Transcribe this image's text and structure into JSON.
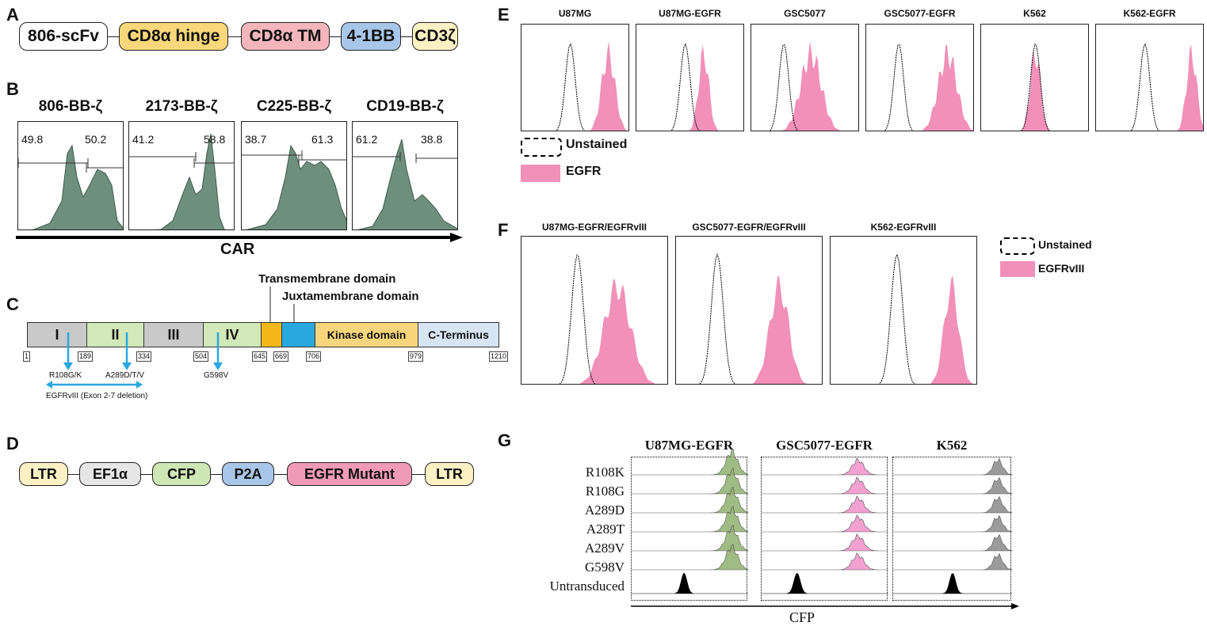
{
  "panel_labels": {
    "a": "A",
    "b": "B",
    "c": "C",
    "d": "D",
    "e": "E",
    "f": "F",
    "g": "G"
  },
  "a": {
    "boxes": [
      "806-scFv",
      "CD8α hinge",
      "CD8α TM",
      "4-1BB",
      "CD3ζ"
    ],
    "colors": [
      "#ffffff",
      "#fad77a",
      "#f4b6bc",
      "#a8c6e8",
      "#fdf1c4"
    ]
  },
  "b": {
    "titles": [
      "806-BB-ζ",
      "2173-BB-ζ",
      "C225-BB-ζ",
      "CD19-BB-ζ"
    ],
    "pct_left": [
      "49.8",
      "41.2",
      "38.7",
      "61.2"
    ],
    "pct_right": [
      "50.2",
      "58.8",
      "61.3",
      "38.8"
    ],
    "axis_label": "CAR",
    "fill_color": "#6f8f7e"
  },
  "c": {
    "title_tm": "Transmembrane domain",
    "title_jm": "Juxtamembrane domain",
    "segments": [
      "I",
      "II",
      "III",
      "IV",
      "",
      "",
      "Kinase domain",
      "C-Terminus"
    ],
    "ticks": [
      "1",
      "189",
      "334",
      "504",
      "645",
      "669",
      "706",
      "979",
      "1210"
    ],
    "mut1": "R108G/K",
    "mut2": "A289D/T/V",
    "mut3": "G598V",
    "deletion": "EGFRvIII (Exon 2-7 deletion)"
  },
  "d": {
    "boxes": [
      "LTR",
      "EF1α",
      "CFP",
      "P2A",
      "EGFR Mutant",
      "LTR"
    ],
    "colors": [
      "#fdf1c4",
      "#e6e6e6",
      "#cfe6b5",
      "#a8c6e8",
      "#f19ab8",
      "#fdf1c4"
    ]
  },
  "e": {
    "titles": [
      "U87MG",
      "U87MG-EGFR",
      "GSC5077",
      "GSC5077-EGFR",
      "K562",
      "K562-EGFR"
    ],
    "legend_unstained": "Unstained",
    "legend_stained": "EGFR",
    "pink": "#f190b8"
  },
  "f": {
    "titles": [
      "U87MG-EGFR/EGFRvIII",
      "GSC5077-EGFR/EGFRvIII",
      "K562-EGFRvIII"
    ],
    "legend_unstained": "Unstained",
    "legend_stained": "EGFRvIII"
  },
  "g": {
    "col_titles": [
      "U87MG-EGFR",
      "GSC5077-EGFR",
      "K562"
    ],
    "rows": [
      "R108K",
      "R108G",
      "A289D",
      "A289T",
      "A289V",
      "G598V",
      "Untransduced"
    ],
    "axis_label": "CFP",
    "colors": [
      "#8fb070",
      "#f190c8",
      "#8a8a8a"
    ]
  }
}
